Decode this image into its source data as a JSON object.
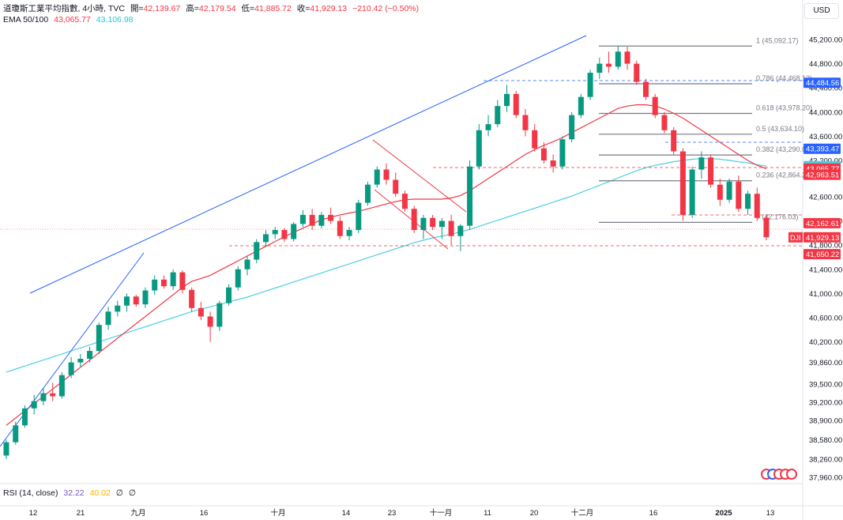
{
  "header": {
    "symbol_desc": "道瓊斯工業平均指數, 4小時, TVC",
    "open_label": "開=",
    "open": "42,139.67",
    "high_label": "高=",
    "high": "42,179.54",
    "low_label": "低=",
    "low": "41,885.72",
    "close_label": "收=",
    "close": "41,929.13",
    "change": "−210.42 (−0.50%)",
    "ema_label": "EMA 50/100",
    "ema50": "43,065.77",
    "ema100": "43,106.98"
  },
  "currency_button": "USD",
  "rsi": {
    "label": "RSI (14, close)",
    "value1": "32.22",
    "value2": "40.02",
    "value3": "∅",
    "value4": "∅"
  },
  "colors": {
    "up": "#089981",
    "down": "#f23645",
    "ema50": "#f23645",
    "ema100": "#4dd0e1",
    "trendline": "#2962ff",
    "channel": "#f23645",
    "fib": "#787b86"
  },
  "chart_data": {
    "type": "candlestick",
    "y_ticks": [
      45200,
      44800,
      44400,
      44000,
      43600,
      43200,
      42600,
      42200,
      41800,
      41400,
      41000,
      40600,
      40200,
      39860,
      39500,
      39200,
      38900,
      38580,
      38260,
      37960
    ],
    "y_tick_labels": [
      "45,200.00",
      "44,800.00",
      "44,400.00",
      "44,000.00",
      "43,600.00",
      "43,200.00",
      "42,600.00",
      "42,200.00",
      "41,800.00",
      "41,400.00",
      "41,000.00",
      "40,600.00",
      "40,200.00",
      "39,860.00",
      "39,500.00",
      "39,200.00",
      "38,900.00",
      "38,580.00",
      "38,260.00",
      "37,960.00"
    ],
    "x_tick_labels": [
      "12",
      "21",
      "九月",
      "16",
      "十月",
      "14",
      "23",
      "十一月",
      "11",
      "20",
      "十二月",
      "16",
      "2025",
      "13"
    ],
    "fib_levels": [
      {
        "ratio": "1",
        "value": 45092.17,
        "label": "1 (45,092.17)"
      },
      {
        "ratio": "0.786",
        "value": 44468.12,
        "label": "0.786 (44,468.12)"
      },
      {
        "ratio": "0.618",
        "value": 43978.2,
        "label": "0.618 (43,978.20)"
      },
      {
        "ratio": "0.5",
        "value": 43634.1,
        "label": "0.5 (43,634.10)"
      },
      {
        "ratio": "0.382",
        "value": 43290.0,
        "label": "0.382 (43,290.00)"
      },
      {
        "ratio": "0.236",
        "value": 42864.24,
        "label": "0.236 (42,864.24)"
      },
      {
        "ratio": "0",
        "value": 42176.03,
        "label": "0 (42,176.03)"
      }
    ],
    "price_tags": [
      {
        "value": 44484.56,
        "label": "44,484.56",
        "bg": "#2962ff"
      },
      {
        "value": 43393.47,
        "label": "43,393.47",
        "bg": "#2962ff"
      },
      {
        "value": 43106.98,
        "label": "43,106.98",
        "bg": "#4dd0e1"
      },
      {
        "value": 43065.77,
        "label": "43,065.77",
        "bg": "#f23645"
      },
      {
        "value": 42963.51,
        "label": "42,963.51",
        "bg": "#f23645"
      },
      {
        "value": 42162.61,
        "label": "42,162.61",
        "bg": "#f23645"
      },
      {
        "value": 41929.13,
        "label": "41,929.13",
        "bg": "#f23645"
      },
      {
        "value": 41650.22,
        "label": "41,650.22",
        "bg": "#f23645"
      }
    ],
    "symbol_tag": "DJI",
    "candles": [
      [
        38320,
        38580,
        38260,
        38540
      ],
      [
        38540,
        38880,
        38500,
        38820
      ],
      [
        38820,
        39150,
        38780,
        39100
      ],
      [
        39100,
        39320,
        39000,
        39220
      ],
      [
        39220,
        39440,
        39150,
        39350
      ],
      [
        39350,
        39520,
        39220,
        39300
      ],
      [
        39300,
        39700,
        39260,
        39650
      ],
      [
        39650,
        39950,
        39600,
        39860
      ],
      [
        39860,
        40000,
        39780,
        39920
      ],
      [
        39920,
        40120,
        39860,
        40050
      ],
      [
        40050,
        40520,
        40000,
        40480
      ],
      [
        40480,
        40780,
        40400,
        40700
      ],
      [
        40700,
        40880,
        40620,
        40800
      ],
      [
        40800,
        41000,
        40700,
        40950
      ],
      [
        40950,
        40980,
        40780,
        40820
      ],
      [
        40820,
        41100,
        40760,
        41050
      ],
      [
        41050,
        41300,
        40980,
        41230
      ],
      [
        41230,
        41300,
        41080,
        41120
      ],
      [
        41120,
        41400,
        41060,
        41350
      ],
      [
        41350,
        41380,
        41000,
        41060
      ],
      [
        41060,
        41100,
        40700,
        40760
      ],
      [
        40760,
        40860,
        40560,
        40620
      ],
      [
        40620,
        40700,
        40200,
        40450
      ],
      [
        40450,
        40880,
        40380,
        40840
      ],
      [
        40840,
        41150,
        40800,
        41100
      ],
      [
        41100,
        41450,
        41050,
        41400
      ],
      [
        41400,
        41620,
        41300,
        41560
      ],
      [
        41560,
        41900,
        41500,
        41850
      ],
      [
        41850,
        42050,
        41780,
        41980
      ],
      [
        41980,
        42100,
        41900,
        42050
      ],
      [
        42050,
        42080,
        41850,
        41900
      ],
      [
        41900,
        42180,
        41860,
        42150
      ],
      [
        42150,
        42380,
        42100,
        42300
      ],
      [
        42300,
        42400,
        42050,
        42120
      ],
      [
        42120,
        42350,
        42080,
        42300
      ],
      [
        42300,
        42420,
        42150,
        42200
      ],
      [
        42200,
        42280,
        41900,
        41950
      ],
      [
        41950,
        42100,
        41880,
        42050
      ],
      [
        42050,
        42550,
        42000,
        42500
      ],
      [
        42500,
        42850,
        42450,
        42800
      ],
      [
        42800,
        43100,
        42750,
        43050
      ],
      [
        43050,
        43150,
        42800,
        42880
      ],
      [
        42880,
        43000,
        42600,
        42650
      ],
      [
        42650,
        42700,
        42350,
        42400
      ],
      [
        42400,
        42450,
        42000,
        42050
      ],
      [
        42050,
        42300,
        41900,
        42250
      ],
      [
        42250,
        42300,
        42050,
        42100
      ],
      [
        42100,
        42250,
        41900,
        42200
      ],
      [
        42200,
        42300,
        41800,
        41950
      ],
      [
        41950,
        42150,
        41700,
        42120
      ],
      [
        42120,
        43200,
        42050,
        43100
      ],
      [
        43100,
        43800,
        43050,
        43700
      ],
      [
        43700,
        43950,
        43600,
        43800
      ],
      [
        43800,
        44200,
        43750,
        44100
      ],
      [
        44100,
        44450,
        44000,
        44300
      ],
      [
        44300,
        44350,
        43900,
        43950
      ],
      [
        43950,
        44050,
        43600,
        43700
      ],
      [
        43700,
        43800,
        43350,
        43400
      ],
      [
        43400,
        43500,
        43150,
        43200
      ],
      [
        43200,
        43300,
        43000,
        43100
      ],
      [
        43100,
        43600,
        43050,
        43550
      ],
      [
        43550,
        44000,
        43500,
        43950
      ],
      [
        43950,
        44300,
        43900,
        44250
      ],
      [
        44250,
        44700,
        44200,
        44650
      ],
      [
        44650,
        44900,
        44550,
        44800
      ],
      [
        44800,
        45000,
        44650,
        44750
      ],
      [
        44750,
        45100,
        44700,
        45000
      ],
      [
        45000,
        45080,
        44700,
        44800
      ],
      [
        44800,
        44850,
        44450,
        44500
      ],
      [
        44500,
        44550,
        44200,
        44250
      ],
      [
        44250,
        44300,
        43900,
        43950
      ],
      [
        43950,
        44000,
        43650,
        43700
      ],
      [
        43700,
        43750,
        43300,
        43350
      ],
      [
        43350,
        43400,
        42200,
        42300
      ],
      [
        42300,
        43100,
        42250,
        43050
      ],
      [
        43050,
        43350,
        42900,
        43250
      ],
      [
        43250,
        43300,
        42750,
        42800
      ],
      [
        42800,
        42900,
        42450,
        42550
      ],
      [
        42550,
        42900,
        42500,
        42850
      ],
      [
        42850,
        42950,
        42350,
        42400
      ],
      [
        42400,
        42700,
        42300,
        42650
      ],
      [
        42650,
        42750,
        42200,
        42250
      ],
      [
        42250,
        42300,
        41880,
        41930
      ]
    ],
    "ema50": [
      38820,
      38940,
      39060,
      39180,
      39300,
      39420,
      39540,
      39660,
      39780,
      39900,
      40020,
      40140,
      40260,
      40380,
      40500,
      40620,
      40740,
      40860,
      40980,
      41100,
      41200,
      41250,
      41300,
      41380,
      41460,
      41540,
      41620,
      41700,
      41780,
      41860,
      41940,
      42010,
      42080,
      42150,
      42220,
      42260,
      42300,
      42330,
      42360,
      42400,
      42440,
      42480,
      42520,
      42550,
      42560,
      42560,
      42560,
      42560,
      42580,
      42620,
      42700,
      42800,
      42900,
      43000,
      43100,
      43200,
      43300,
      43380,
      43450,
      43510,
      43580,
      43660,
      43740,
      43820,
      43900,
      43980,
      44060,
      44100,
      44120,
      44120,
      44100,
      44050,
      43980,
      43900,
      43800,
      43700,
      43600,
      43500,
      43400,
      43300,
      43200,
      43120,
      43065
    ],
    "ema100": [
      39700,
      39750,
      39800,
      39850,
      39900,
      39950,
      40000,
      40050,
      40100,
      40150,
      40200,
      40250,
      40300,
      40350,
      40400,
      40450,
      40500,
      40550,
      40600,
      40650,
      40700,
      40740,
      40780,
      40820,
      40860,
      40900,
      40940,
      40990,
      41040,
      41090,
      41140,
      41190,
      41240,
      41290,
      41340,
      41390,
      41440,
      41490,
      41540,
      41590,
      41640,
      41690,
      41740,
      41790,
      41840,
      41880,
      41920,
      41950,
      41980,
      42020,
      42060,
      42110,
      42160,
      42210,
      42260,
      42310,
      42360,
      42410,
      42460,
      42510,
      42560,
      42610,
      42670,
      42730,
      42790,
      42850,
      42910,
      42970,
      43030,
      43080,
      43120,
      43150,
      43180,
      43200,
      43220,
      43230,
      43230,
      43220,
      43200,
      43180,
      43160,
      43130,
      43107
    ]
  }
}
